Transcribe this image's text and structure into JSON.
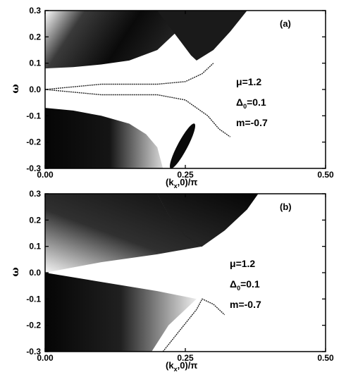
{
  "chart_data": [
    {
      "type": "heatmap",
      "panel_label": "(a)",
      "xlabel": "(k",
      "xlabel_sub": "x",
      "xlabel_tail": ",0)/π",
      "ylabel": "ω",
      "xlim": [
        0.0,
        0.5
      ],
      "ylim": [
        -0.3,
        0.3
      ],
      "xticks": [
        "0.00",
        "0.25",
        "0.50"
      ],
      "yticks": [
        "0.3",
        "0.2",
        "0.1",
        "0.0",
        "-0.1",
        "-0.2",
        "-0.3"
      ],
      "params": {
        "mu": "μ=1.2",
        "delta_main": "Δ",
        "delta_sub": "0",
        "delta_tail": "=0.1",
        "m": "m=-0.7"
      },
      "bulk_upper_edge": [
        [
          0.0,
          0.08
        ],
        [
          0.05,
          0.085
        ],
        [
          0.1,
          0.095
        ],
        [
          0.15,
          0.11
        ],
        [
          0.2,
          0.15
        ],
        [
          0.225,
          0.2
        ],
        [
          0.25,
          0.25
        ],
        [
          0.27,
          0.3
        ]
      ],
      "bulk_upper_right_edge": [
        [
          0.27,
          0.11
        ],
        [
          0.3,
          0.15
        ],
        [
          0.33,
          0.22
        ],
        [
          0.36,
          0.3
        ]
      ],
      "bulk_lower_edge": [
        [
          0.0,
          -0.07
        ],
        [
          0.05,
          -0.08
        ],
        [
          0.1,
          -0.1
        ],
        [
          0.15,
          -0.13
        ],
        [
          0.18,
          -0.17
        ],
        [
          0.2,
          -0.22
        ],
        [
          0.21,
          -0.3
        ]
      ],
      "surface_states": [
        [
          [
            0.0,
            0.0
          ],
          [
            0.1,
            0.02
          ],
          [
            0.2,
            0.02
          ],
          [
            0.25,
            0.03
          ],
          [
            0.28,
            0.06
          ],
          [
            0.3,
            0.1
          ]
        ],
        [
          [
            0.0,
            0.0
          ],
          [
            0.1,
            -0.02
          ],
          [
            0.2,
            -0.02
          ],
          [
            0.25,
            -0.04
          ],
          [
            0.29,
            -0.1
          ],
          [
            0.31,
            -0.15
          ],
          [
            0.33,
            -0.18
          ]
        ]
      ]
    },
    {
      "type": "heatmap",
      "panel_label": "(b)",
      "xlabel": "(k",
      "xlabel_sub": "x",
      "xlabel_tail": ",0)/π",
      "ylabel": "ω",
      "xlim": [
        0.0,
        0.5
      ],
      "ylim": [
        -0.3,
        0.3
      ],
      "xticks": [
        "0.00",
        "0.25",
        "0.50"
      ],
      "yticks": [
        "0.3",
        "0.2",
        "0.1",
        "0.0",
        "-0.1",
        "-0.2",
        "-0.3"
      ],
      "params": {
        "mu": "μ=1.2",
        "delta_main": "Δ",
        "delta_sub": "0",
        "delta_tail": "=0.1",
        "m": "m=-0.7"
      },
      "bulk_upper_edge": [
        [
          0.0,
          0.0
        ],
        [
          0.1,
          0.04
        ],
        [
          0.2,
          0.07
        ],
        [
          0.28,
          0.1
        ],
        [
          0.32,
          0.16
        ],
        [
          0.36,
          0.24
        ],
        [
          0.38,
          0.3
        ]
      ],
      "bulk_lower_edge": [
        [
          0.0,
          0.0
        ],
        [
          0.1,
          -0.035
        ],
        [
          0.2,
          -0.07
        ],
        [
          0.27,
          -0.1
        ],
        [
          0.22,
          -0.2
        ],
        [
          0.19,
          -0.3
        ]
      ],
      "surface_states": [
        [
          [
            0.2,
            0.3
          ],
          [
            0.22,
            0.22
          ],
          [
            0.25,
            0.14
          ],
          [
            0.28,
            0.1
          ]
        ],
        [
          [
            0.21,
            -0.3
          ],
          [
            0.24,
            -0.22
          ],
          [
            0.27,
            -0.14
          ],
          [
            0.28,
            -0.1
          ],
          [
            0.3,
            -0.12
          ],
          [
            0.32,
            -0.16
          ]
        ]
      ]
    }
  ]
}
